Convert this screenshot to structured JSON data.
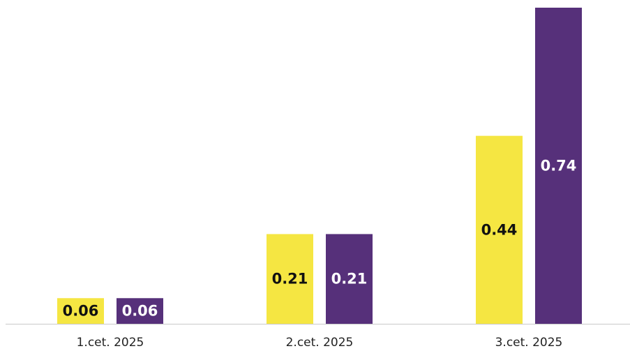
{
  "chart_data": {
    "type": "bar",
    "categories": [
      "1.cet. 2025",
      "2.cet. 2025",
      "3.cet. 2025"
    ],
    "series": [
      {
        "color": "#f5e642",
        "values": [
          0.06,
          0.21,
          0.44
        ]
      },
      {
        "color": "#56307a",
        "values": [
          0.06,
          0.21,
          0.74
        ]
      }
    ],
    "ylim": [
      0,
      0.74
    ]
  }
}
